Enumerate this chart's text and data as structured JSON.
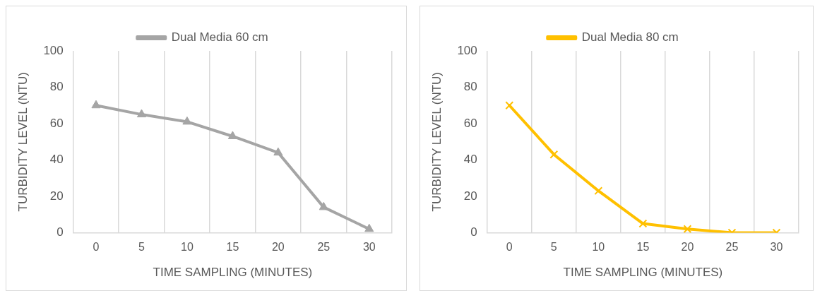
{
  "chart_data": [
    {
      "type": "line",
      "xlabel": "TIME SAMPLING (MINUTES)",
      "ylabel": "TURBIDITY LEVEL (NTU)",
      "categories": [
        "0",
        "5",
        "10",
        "15",
        "20",
        "25",
        "30"
      ],
      "series": [
        {
          "name": "Dual Media 60 cm",
          "color": "#a5a5a5",
          "marker": "triangle",
          "values": [
            70,
            65,
            61,
            53,
            44,
            14,
            2
          ]
        }
      ],
      "ylim": [
        0,
        100
      ],
      "yticks": [
        0,
        20,
        40,
        60,
        80,
        100
      ],
      "grid": "x",
      "legend": "top"
    },
    {
      "type": "line",
      "xlabel": "TIME SAMPLING (MINUTES)",
      "ylabel": "TURBIDITY LEVEL (NTU)",
      "categories": [
        "0",
        "5",
        "10",
        "15",
        "20",
        "25",
        "30"
      ],
      "series": [
        {
          "name": "Dual Media 80 cm",
          "color": "#ffc000",
          "marker": "cross",
          "values": [
            70,
            43,
            23,
            5,
            2,
            0,
            0
          ]
        }
      ],
      "ylim": [
        0,
        100
      ],
      "yticks": [
        0,
        20,
        40,
        60,
        80,
        100
      ],
      "grid": "x",
      "legend": "top"
    }
  ]
}
